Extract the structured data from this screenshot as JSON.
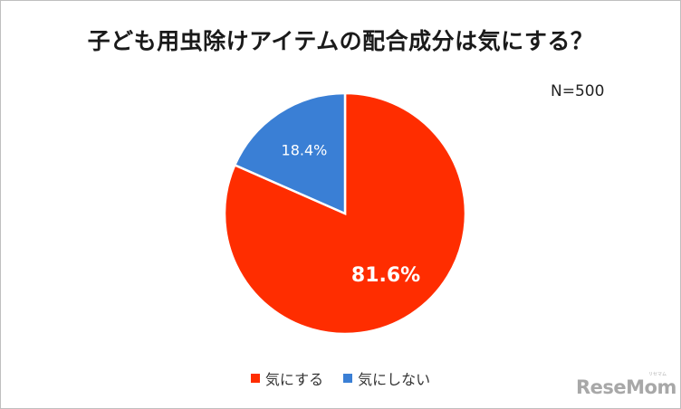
{
  "chart_data": {
    "type": "pie",
    "title": "子ども用虫除けアイテムの配合成分は気にする？",
    "annotation": "N=500",
    "slices": [
      {
        "label": "気にする",
        "value": 81.6,
        "display": "81.6%",
        "color": "#ff2d00"
      },
      {
        "label": "気にしない",
        "value": 18.4,
        "display": "18.4%",
        "color": "#3a7fd5"
      }
    ],
    "legend_position": "bottom"
  },
  "watermark": {
    "text": "ReseMom",
    "sub": "リセマム"
  }
}
